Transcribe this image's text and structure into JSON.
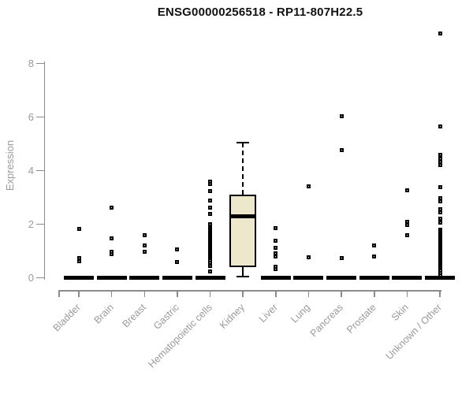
{
  "header": {
    "title": "ENSG00000256518 - RP11-807H22.5"
  },
  "colors": {
    "background": "#ffffff",
    "axis": "#8b8b8b",
    "axis_text": "#9a9a9a",
    "title_text": "#111111",
    "box_fill": "#ede7cb",
    "points": "#000000"
  },
  "chart_data": {
    "type": "boxplot",
    "title": "ENSG00000256518 - RP11-807H22.5",
    "xlabel": "",
    "ylabel": "Expression",
    "ylim": [
      0,
      9.3
    ],
    "yticks": [
      0,
      2,
      4,
      6,
      8
    ],
    "grid": false,
    "legend": false,
    "point_style": "open-square",
    "categories": [
      "Bladder",
      "Brain",
      "Breast",
      "Gastric",
      "Hematopoietic cells",
      "Kidney",
      "Liver",
      "Lung",
      "Pancreas",
      "Prostate",
      "Skin",
      "Unknown / Other"
    ],
    "series": [
      {
        "category": "Bladder",
        "box": {
          "min": 0,
          "q1": 0,
          "median": 0,
          "q3": 0,
          "max": 0
        },
        "points": [
          1.82,
          0.72,
          0.62
        ]
      },
      {
        "category": "Brain",
        "box": {
          "min": 0,
          "q1": 0,
          "median": 0,
          "q3": 0,
          "max": 0
        },
        "points": [
          2.61,
          1.48,
          0.98,
          0.88
        ]
      },
      {
        "category": "Breast",
        "box": {
          "min": 0,
          "q1": 0,
          "median": 0,
          "q3": 0,
          "max": 0
        },
        "points": [
          1.59,
          1.2,
          0.98
        ]
      },
      {
        "category": "Gastric",
        "box": {
          "min": 0,
          "q1": 0,
          "median": 0,
          "q3": 0,
          "max": 0
        },
        "points": [
          1.05,
          0.57
        ]
      },
      {
        "category": "Hematopoietic cells",
        "box": {
          "min": 0,
          "q1": 0,
          "median": 0,
          "q3": 0,
          "max": 0
        },
        "points": [
          3.6,
          3.5,
          3.22,
          2.87,
          2.63,
          2.38,
          1.99,
          1.85,
          1.81,
          1.77,
          1.73,
          1.69,
          1.65,
          1.61,
          1.57,
          1.53,
          1.49,
          1.45,
          1.41,
          1.37,
          1.33,
          1.29,
          1.25,
          1.21,
          1.17,
          1.13,
          1.09,
          1.05,
          1.01,
          0.97,
          0.93,
          0.89,
          0.85,
          0.81,
          0.77,
          0.73,
          0.69,
          0.65,
          0.56,
          0.44,
          0.22
        ]
      },
      {
        "category": "Kidney",
        "box": {
          "min": 0.05,
          "q1": 0.4,
          "median": 2.28,
          "q3": 3.1,
          "max": 5.05
        },
        "points": []
      },
      {
        "category": "Liver",
        "box": {
          "min": 0,
          "q1": 0,
          "median": 0,
          "q3": 0,
          "max": 0
        },
        "points": [
          1.85,
          1.37,
          1.12,
          0.9,
          0.8,
          0.41,
          0.31
        ]
      },
      {
        "category": "Lung",
        "box": {
          "min": 0,
          "q1": 0,
          "median": 0,
          "q3": 0,
          "max": 0
        },
        "points": [
          3.4,
          0.76
        ]
      },
      {
        "category": "Pancreas",
        "box": {
          "min": 0,
          "q1": 0,
          "median": 0,
          "q3": 0,
          "max": 0
        },
        "points": [
          6.02,
          4.78,
          0.73
        ]
      },
      {
        "category": "Prostate",
        "box": {
          "min": 0,
          "q1": 0,
          "median": 0,
          "q3": 0,
          "max": 0
        },
        "points": [
          1.2,
          0.8
        ]
      },
      {
        "category": "Skin",
        "box": {
          "min": 0,
          "q1": 0,
          "median": 0,
          "q3": 0,
          "max": 0
        },
        "points": [
          3.25,
          2.08,
          1.98,
          1.57
        ]
      },
      {
        "category": "Unknown / Other",
        "box": {
          "min": 0,
          "q1": 0,
          "median": 0,
          "q3": 0,
          "max": 0
        },
        "points": [
          9.13,
          5.64,
          4.6,
          4.45,
          4.32,
          4.2,
          3.38,
          2.98,
          2.84,
          2.57,
          2.44,
          2.2,
          2.12,
          2.05,
          1.8,
          1.75,
          1.7,
          1.65,
          1.6,
          1.55,
          1.5,
          1.45,
          1.4,
          1.35,
          1.3,
          1.25,
          1.2,
          1.15,
          1.1,
          1.05,
          1.0,
          0.95,
          0.9,
          0.85,
          0.8,
          0.75,
          0.7,
          0.65,
          0.6,
          0.55,
          0.5,
          0.45,
          0.4,
          0.35,
          0.3,
          0.25,
          0.16,
          0.07
        ]
      }
    ]
  }
}
